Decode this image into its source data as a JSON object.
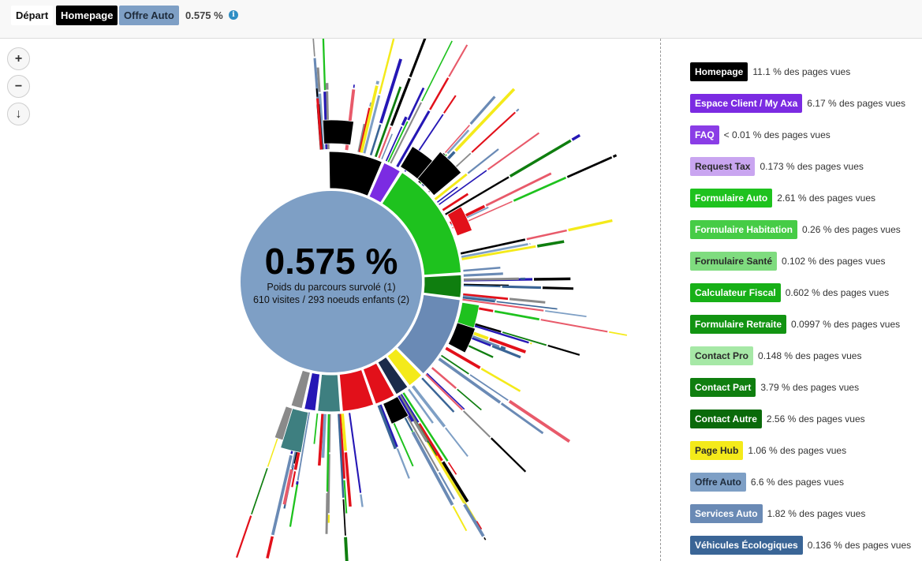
{
  "breadcrumb": {
    "items": [
      {
        "label": "Départ"
      },
      {
        "label": "Homepage"
      },
      {
        "label": "Offre Auto"
      }
    ],
    "percent": "0.575 %",
    "info_icon": "info-icon"
  },
  "controls": {
    "zoom_in": "+",
    "zoom_out": "−",
    "zoom_down": "↓"
  },
  "center": {
    "big": "0.575 %",
    "line1": "Poids du parcours survolé (1)",
    "line2": "610 visites / 293 noeuds enfants (2)",
    "color": "#7e9fc5"
  },
  "legend": [
    {
      "label": "Homepage",
      "value": "11.1 % des pages vues",
      "color": "#000000",
      "text": "#ffffff"
    },
    {
      "label": "Espace Client / My Axa",
      "value": "6.17 % des pages vues",
      "color": "#7b2be2",
      "text": "#ffffff"
    },
    {
      "label": "FAQ",
      "value": "< 0.01 % des pages vues",
      "color": "#8a3de6",
      "text": "#ffffff"
    },
    {
      "label": "Request Tax",
      "value": "0.173 % des pages vues",
      "color": "#c9a5f0",
      "text": "#2a2a2a"
    },
    {
      "label": "Formulaire Auto",
      "value": "2.61 % des pages vues",
      "color": "#1ec21e",
      "text": "#ffffff"
    },
    {
      "label": "Formulaire Habitation",
      "value": "0.26 % des pages vues",
      "color": "#46cc46",
      "text": "#ffffff"
    },
    {
      "label": "Formulaire Santé",
      "value": "0.102 % des pages vues",
      "color": "#7fdc7f",
      "text": "#2a2a2a"
    },
    {
      "label": "Calculateur Fiscal",
      "value": "0.602 % des pages vues",
      "color": "#17b017",
      "text": "#ffffff"
    },
    {
      "label": "Formulaire Retraite",
      "value": "0.0997 % des pages vues",
      "color": "#129412",
      "text": "#ffffff"
    },
    {
      "label": "Contact Pro",
      "value": "0.148 % des pages vues",
      "color": "#a6e8a6",
      "text": "#2a2a2a"
    },
    {
      "label": "Contact Part",
      "value": "3.79 % des pages vues",
      "color": "#0f7e0f",
      "text": "#ffffff"
    },
    {
      "label": "Contact Autre",
      "value": "2.56 % des pages vues",
      "color": "#0a6a0a",
      "text": "#ffffff"
    },
    {
      "label": "Page Hub",
      "value": "1.06 % des pages vues",
      "color": "#f4ea1a",
      "text": "#2a2a2a"
    },
    {
      "label": "Offre Auto",
      "value": "6.6 % des pages vues",
      "color": "#7e9fc5",
      "text": "#1d2a3a"
    },
    {
      "label": "Services Auto",
      "value": "1.82 % des pages vues",
      "color": "#6a8ab5",
      "text": "#ffffff"
    },
    {
      "label": "Véhicules Écologiques",
      "value": "0.136 % des pages vues",
      "color": "#3a6596",
      "text": "#ffffff"
    }
  ],
  "ring1_colors": [
    "#000000",
    "#7b2be2",
    "#1ec21e",
    "#0f7e0f",
    "#6a8ab5",
    "#f4ea1a",
    "#1b2b4a",
    "#e85a6a",
    "#e2101a",
    "#3e7f80",
    "#2517b5",
    "#8a8a8a"
  ]
}
